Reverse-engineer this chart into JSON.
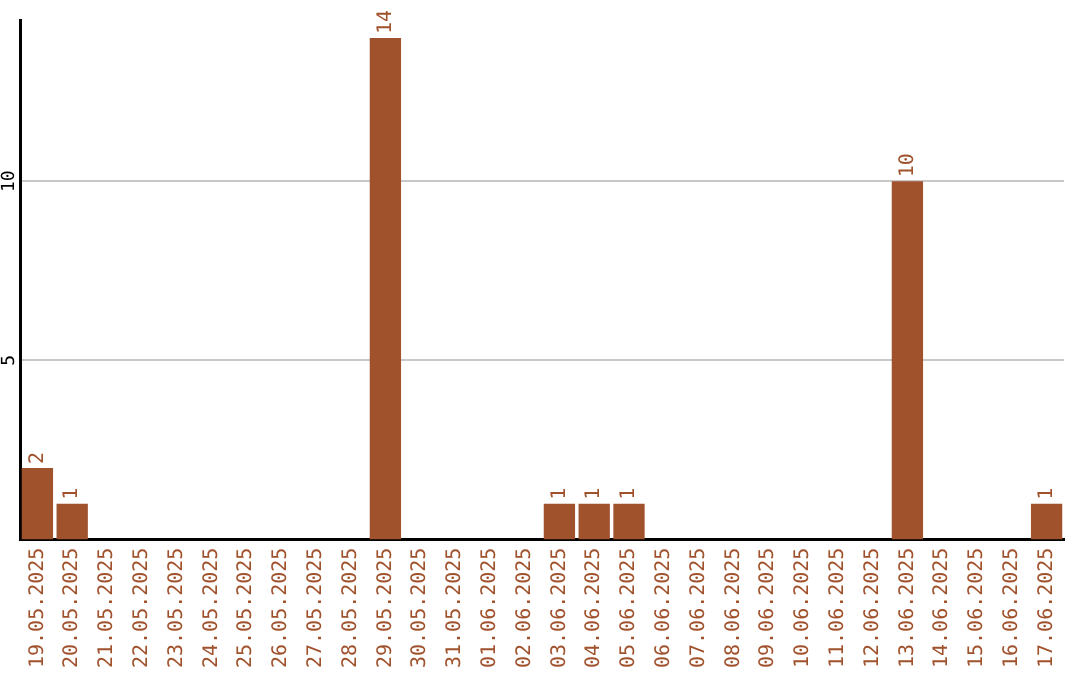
{
  "chart_data": {
    "type": "bar",
    "categories": [
      "19.05.2025",
      "20.05.2025",
      "21.05.2025",
      "22.05.2025",
      "23.05.2025",
      "24.05.2025",
      "25.05.2025",
      "26.05.2025",
      "27.05.2025",
      "28.05.2025",
      "29.05.2025",
      "30.05.2025",
      "31.05.2025",
      "01.06.2025",
      "02.06.2025",
      "03.06.2025",
      "04.06.2025",
      "05.06.2025",
      "06.06.2025",
      "07.06.2025",
      "08.06.2025",
      "09.06.2025",
      "10.06.2025",
      "11.06.2025",
      "12.06.2025",
      "13.06.2025",
      "14.06.2025",
      "15.06.2025",
      "16.06.2025",
      "17.06.2025"
    ],
    "values": [
      2,
      1,
      0,
      0,
      0,
      0,
      0,
      0,
      0,
      0,
      14,
      0,
      0,
      0,
      0,
      1,
      1,
      1,
      0,
      0,
      0,
      0,
      0,
      0,
      0,
      10,
      0,
      0,
      0,
      1
    ],
    "value_labels": [
      "2",
      "1",
      null,
      null,
      null,
      null,
      null,
      null,
      null,
      null,
      "14",
      null,
      null,
      null,
      null,
      "1",
      "1",
      "1",
      null,
      null,
      null,
      null,
      null,
      null,
      null,
      "10",
      null,
      null,
      null,
      "1"
    ],
    "color": "#a0522d",
    "ylim": [
      0,
      14.5
    ],
    "yticks": [
      5,
      10
    ],
    "grid": "y"
  }
}
